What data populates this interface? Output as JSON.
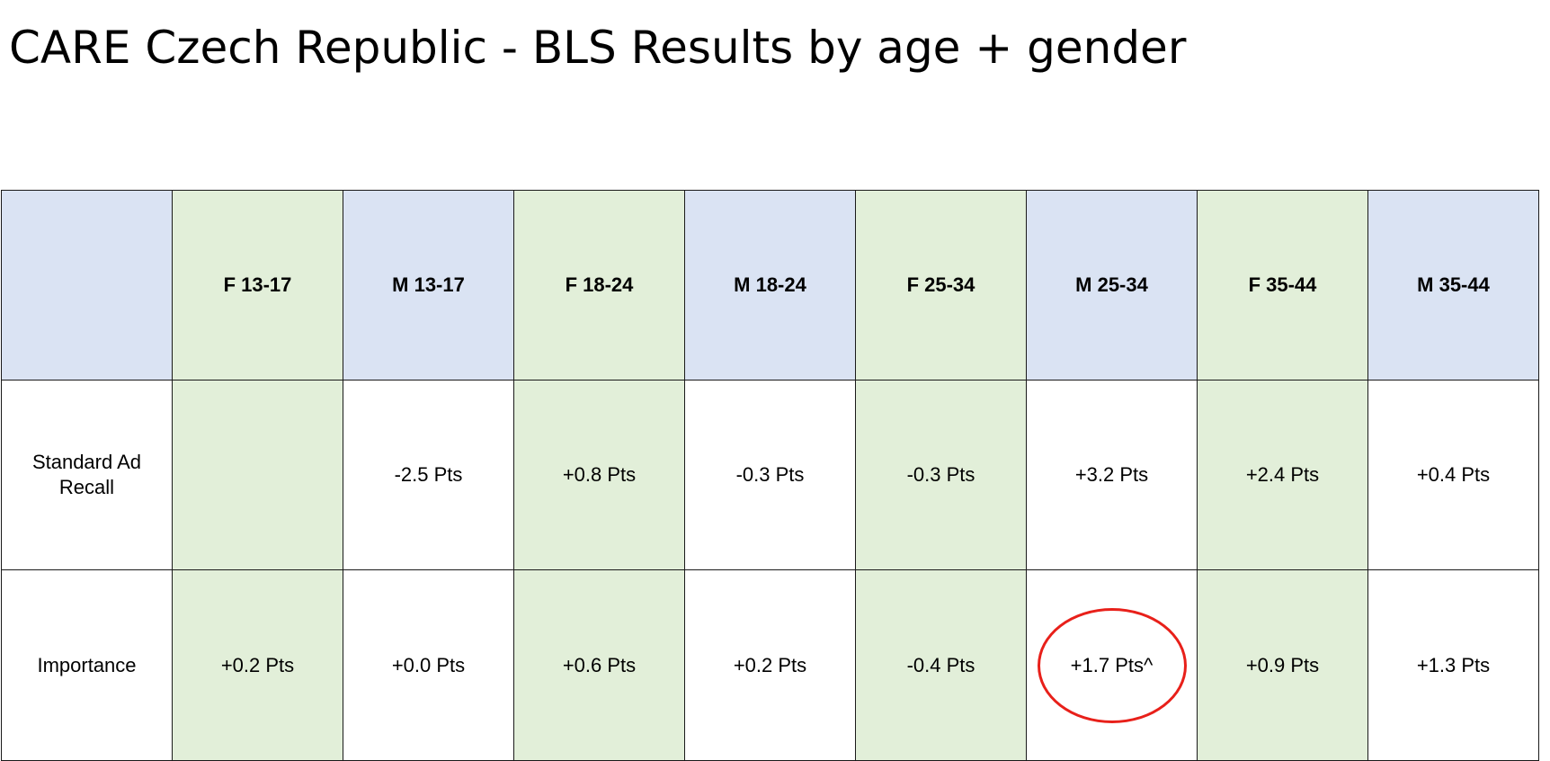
{
  "title": "CARE Czech Republic - BLS Results by age + gender",
  "chart_data": {
    "type": "table",
    "title": "CARE Czech Republic - BLS Results by age + gender",
    "columns": [
      "F 13-17",
      "M 13-17",
      "F 18-24",
      "M 18-24",
      "F 25-34",
      "M 25-34",
      "F 35-44",
      "M 35-44"
    ],
    "rows": [
      {
        "label": "Standard Ad Recall",
        "values": [
          "",
          "-2.5 Pts",
          "+0.8 Pts",
          "-0.3 Pts",
          "-0.3 Pts",
          "+3.2 Pts",
          "+2.4 Pts",
          "+0.4 Pts"
        ]
      },
      {
        "label": "Importance",
        "values": [
          "+0.2 Pts",
          "+0.0 Pts",
          "+0.6 Pts",
          "+0.2 Pts",
          "-0.4 Pts",
          "+1.7 Pts^",
          "+0.9 Pts",
          "+1.3 Pts"
        ]
      }
    ],
    "highlighted_cell": {
      "row": "Importance",
      "column": "M 25-34",
      "marker": "red circle"
    },
    "colors": {
      "female_column": "#e2efd9",
      "male_header": "#dae3f3",
      "male_body": "#ffffff",
      "highlight_circle": "#e8201a",
      "grid": "#1a1a1a"
    }
  }
}
